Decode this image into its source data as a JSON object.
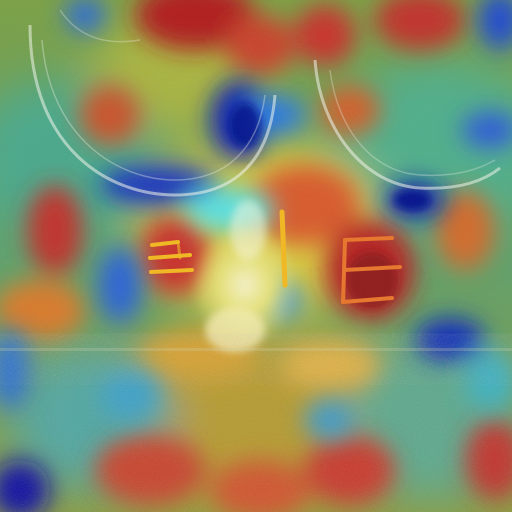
{
  "image": {
    "kind": "heatmap-overlay-photo",
    "colormap": "jet",
    "palette": {
      "deep_blue": "#0a1ea8",
      "blue": "#1e5fd6",
      "cyan": "#39c6d8",
      "teal": "#3fa39a",
      "green": "#7fb04a",
      "yellow": "#e8d83a",
      "orange": "#e07a2a",
      "red": "#c8322a",
      "dark_red": "#8a1a1a",
      "glass_highlight": "#f4f7ef",
      "marker_yellow": "#f2b81e",
      "marker_orange": "#e8752a"
    },
    "marker_letters": [
      {
        "text": "E",
        "color": "marker_yellow"
      },
      {
        "text": "I",
        "color": "marker_yellow"
      },
      {
        "text": "E",
        "color": "marker_orange"
      }
    ]
  }
}
